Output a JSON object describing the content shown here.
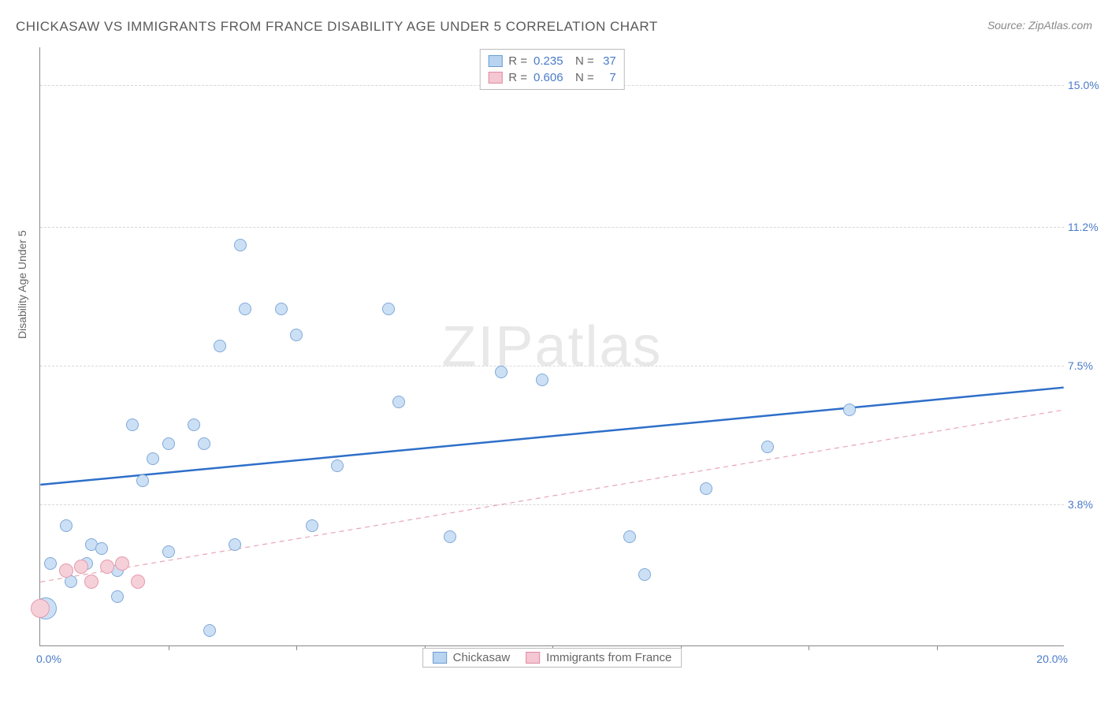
{
  "title": "CHICKASAW VS IMMIGRANTS FROM FRANCE DISABILITY AGE UNDER 5 CORRELATION CHART",
  "source": "Source: ZipAtlas.com",
  "ylabel": "Disability Age Under 5",
  "watermark_a": "ZIP",
  "watermark_b": "atlas",
  "chart": {
    "type": "scatter",
    "xlim": [
      0.0,
      20.0
    ],
    "ylim": [
      0.0,
      16.0
    ],
    "xlim_labels": [
      "0.0%",
      "20.0%"
    ],
    "yticks": [
      3.8,
      7.5,
      11.2,
      15.0
    ],
    "ytick_labels": [
      "3.8%",
      "7.5%",
      "11.2%",
      "15.0%"
    ],
    "xtick_positions": [
      2.5,
      5.0,
      7.5,
      10.0,
      12.5,
      15.0,
      17.5
    ],
    "background_color": "#ffffff",
    "grid_color": "#d8d8d8",
    "axis_color": "#888888",
    "label_color": "#4a7bc8"
  },
  "series": [
    {
      "name": "Chickasaw",
      "fill": "#cce0f5",
      "stroke": "#7fa8d9",
      "swatch_fill": "#b8d4f0",
      "swatch_stroke": "#6a9bd1",
      "R": "0.235",
      "N": "37",
      "trend": {
        "x1": 0.0,
        "y1": 4.3,
        "x2": 20.0,
        "y2": 6.9,
        "stroke": "#2e6fc9",
        "width": 2.5,
        "dash": "none"
      },
      "points": [
        {
          "x": 0.1,
          "y": 1.0,
          "r": 14
        },
        {
          "x": 0.2,
          "y": 2.2,
          "r": 8
        },
        {
          "x": 0.5,
          "y": 3.2,
          "r": 8
        },
        {
          "x": 0.9,
          "y": 2.2,
          "r": 8
        },
        {
          "x": 0.6,
          "y": 1.7,
          "r": 8
        },
        {
          "x": 1.0,
          "y": 2.7,
          "r": 8
        },
        {
          "x": 1.2,
          "y": 2.6,
          "r": 8
        },
        {
          "x": 1.5,
          "y": 1.3,
          "r": 8
        },
        {
          "x": 1.5,
          "y": 2.0,
          "r": 8
        },
        {
          "x": 1.8,
          "y": 5.9,
          "r": 8
        },
        {
          "x": 2.0,
          "y": 4.4,
          "r": 8
        },
        {
          "x": 2.2,
          "y": 5.0,
          "r": 8
        },
        {
          "x": 2.5,
          "y": 5.4,
          "r": 8
        },
        {
          "x": 2.5,
          "y": 2.5,
          "r": 8
        },
        {
          "x": 3.0,
          "y": 5.9,
          "r": 8
        },
        {
          "x": 3.2,
          "y": 5.4,
          "r": 8
        },
        {
          "x": 3.3,
          "y": 0.4,
          "r": 8
        },
        {
          "x": 3.5,
          "y": 8.0,
          "r": 8
        },
        {
          "x": 3.8,
          "y": 2.7,
          "r": 8
        },
        {
          "x": 3.9,
          "y": 10.7,
          "r": 8
        },
        {
          "x": 4.0,
          "y": 9.0,
          "r": 8
        },
        {
          "x": 4.7,
          "y": 9.0,
          "r": 8
        },
        {
          "x": 5.0,
          "y": 8.3,
          "r": 8
        },
        {
          "x": 5.3,
          "y": 3.2,
          "r": 8
        },
        {
          "x": 5.8,
          "y": 4.8,
          "r": 8
        },
        {
          "x": 6.8,
          "y": 9.0,
          "r": 8
        },
        {
          "x": 7.0,
          "y": 6.5,
          "r": 8
        },
        {
          "x": 8.0,
          "y": 2.9,
          "r": 8
        },
        {
          "x": 9.0,
          "y": 7.3,
          "r": 8
        },
        {
          "x": 9.8,
          "y": 7.1,
          "r": 8
        },
        {
          "x": 11.5,
          "y": 2.9,
          "r": 8
        },
        {
          "x": 11.8,
          "y": 1.9,
          "r": 8
        },
        {
          "x": 13.0,
          "y": 4.2,
          "r": 8
        },
        {
          "x": 14.2,
          "y": 5.3,
          "r": 8
        },
        {
          "x": 15.8,
          "y": 6.3,
          "r": 8
        }
      ]
    },
    {
      "name": "Immigrants from France",
      "fill": "#f6d0d8",
      "stroke": "#e59aad",
      "swatch_fill": "#f4c7d2",
      "swatch_stroke": "#e08ba2",
      "R": "0.606",
      "N": "7",
      "trend": {
        "x1": 0.0,
        "y1": 1.7,
        "x2": 20.0,
        "y2": 6.3,
        "stroke": "#e8a5b5",
        "width": 1.2,
        "dash": "6,5"
      },
      "points": [
        {
          "x": 0.0,
          "y": 1.0,
          "r": 12
        },
        {
          "x": 0.5,
          "y": 2.0,
          "r": 9
        },
        {
          "x": 0.8,
          "y": 2.1,
          "r": 9
        },
        {
          "x": 1.0,
          "y": 1.7,
          "r": 9
        },
        {
          "x": 1.3,
          "y": 2.1,
          "r": 9
        },
        {
          "x": 1.6,
          "y": 2.2,
          "r": 9
        },
        {
          "x": 1.9,
          "y": 1.7,
          "r": 9
        }
      ]
    }
  ],
  "trend_box": {
    "rows": [
      {
        "r_label": "R =",
        "r_val": "0.235",
        "n_label": "N =",
        "n_val": "37",
        "series": 0
      },
      {
        "r_label": "R =",
        "r_val": "0.606",
        "n_label": "N =",
        "n_val": "  7",
        "series": 1
      }
    ]
  },
  "legend": [
    {
      "label": "Chickasaw",
      "series": 0
    },
    {
      "label": "Immigrants from France",
      "series": 1
    }
  ]
}
